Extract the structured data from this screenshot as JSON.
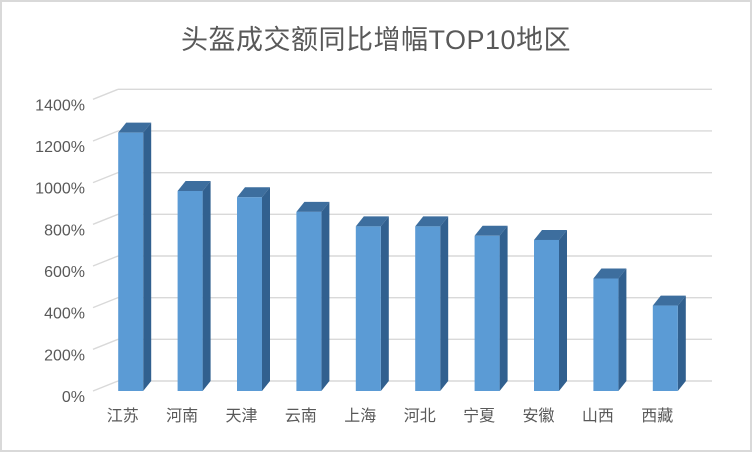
{
  "window": {
    "background": "#ffffff",
    "frame_border_color": "#d9d9d9"
  },
  "chart_data": {
    "type": "bar",
    "style": "3d-column",
    "title": "头盔成交额同比增幅TOP10地区",
    "categories": [
      "江苏",
      "河南",
      "天津",
      "云南",
      "上海",
      "河北",
      "宁夏",
      "安徽",
      "山西",
      "西藏"
    ],
    "values": [
      1240,
      960,
      930,
      860,
      790,
      790,
      745,
      725,
      540,
      410
    ],
    "value_unit": "%",
    "xlabel": "",
    "ylabel": "",
    "ylim": [
      0,
      1400
    ],
    "ytick_step": 200,
    "ytick_labels": [
      "0%",
      "200%",
      "400%",
      "600%",
      "800%",
      "1000%",
      "1200%",
      "1400%"
    ],
    "grid": true,
    "legend": false,
    "colors": {
      "bar_front": "#5b9bd5",
      "bar_top": "#3d6e9e",
      "bar_side": "#31608f",
      "gridline": "#d9d9d9",
      "text": "#595959",
      "title_text": "#595959"
    }
  }
}
